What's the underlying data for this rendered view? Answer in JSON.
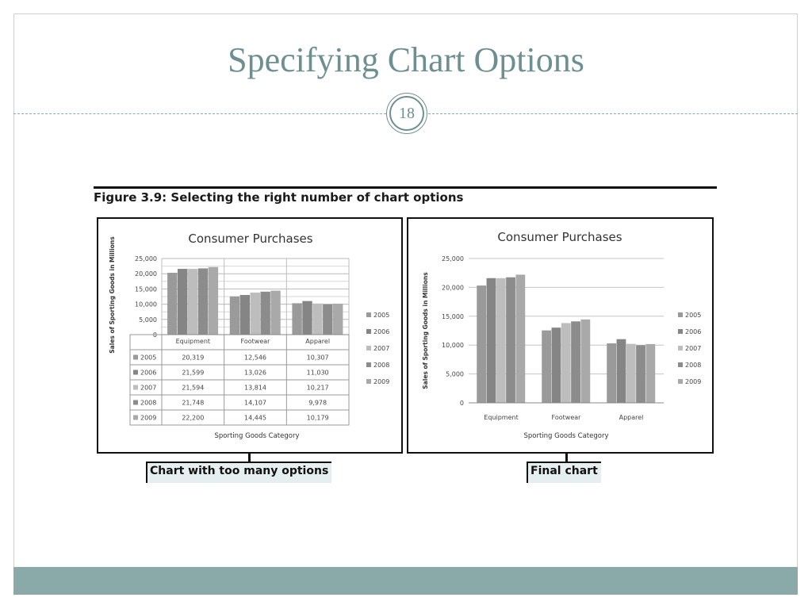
{
  "slide": {
    "title": "Specifying Chart Options",
    "page_number": "18",
    "figure_caption": "Figure 3.9: Selecting the right number of chart options",
    "callout_left": "Chart with too many options",
    "callout_right": "Final chart"
  },
  "colors": {
    "title": "#6e8f91",
    "bottom_band": "#8aaaaa",
    "series": [
      "#9a9a9a",
      "#858585",
      "#bdbdbd",
      "#8c8c8c",
      "#a9a9a9"
    ]
  },
  "chart_data": [
    {
      "type": "bar",
      "title": "Consumer Purchases",
      "xlabel": "Sporting Goods Category",
      "ylabel": "Sales of Sporting Goods in Millions",
      "categories": [
        "Equipment",
        "Footwear",
        "Apparel"
      ],
      "ylim": [
        0,
        25000
      ],
      "yticks": [
        "0",
        "5,000",
        "10,000",
        "15,000",
        "20,000",
        "25,000"
      ],
      "grid": true,
      "legend": "right",
      "data_table": true,
      "series": [
        {
          "name": "2005",
          "values": [
            20319,
            12546,
            10307
          ],
          "labels": [
            "20,319",
            "12,546",
            "10,307"
          ]
        },
        {
          "name": "2006",
          "values": [
            21599,
            13026,
            11030
          ],
          "labels": [
            "21,599",
            "13,026",
            "11,030"
          ]
        },
        {
          "name": "2007",
          "values": [
            21594,
            13814,
            10217
          ],
          "labels": [
            "21,594",
            "13,814",
            "10,217"
          ]
        },
        {
          "name": "2008",
          "values": [
            21748,
            14107,
            9978
          ],
          "labels": [
            "21,748",
            "14,107",
            "9,978"
          ]
        },
        {
          "name": "2009",
          "values": [
            22200,
            14445,
            10179
          ],
          "labels": [
            "22,200",
            "14,445",
            "10,179"
          ]
        }
      ]
    },
    {
      "type": "bar",
      "title": "Consumer Purchases",
      "xlabel": "Sporting Goods Category",
      "ylabel": "Sales of Sporting Goods in Millions",
      "categories": [
        "Equipment",
        "Footwear",
        "Apparel"
      ],
      "ylim": [
        0,
        25000
      ],
      "yticks": [
        "0",
        "5,000",
        "10,000",
        "15,000",
        "20,000",
        "25,000"
      ],
      "grid": true,
      "legend": "right",
      "data_table": false,
      "series": [
        {
          "name": "2005",
          "values": [
            20319,
            12546,
            10307
          ]
        },
        {
          "name": "2006",
          "values": [
            21599,
            13026,
            11030
          ]
        },
        {
          "name": "2007",
          "values": [
            21594,
            13814,
            10217
          ]
        },
        {
          "name": "2008",
          "values": [
            21748,
            14107,
            9978
          ]
        },
        {
          "name": "2009",
          "values": [
            22200,
            14445,
            10179
          ]
        }
      ]
    }
  ]
}
